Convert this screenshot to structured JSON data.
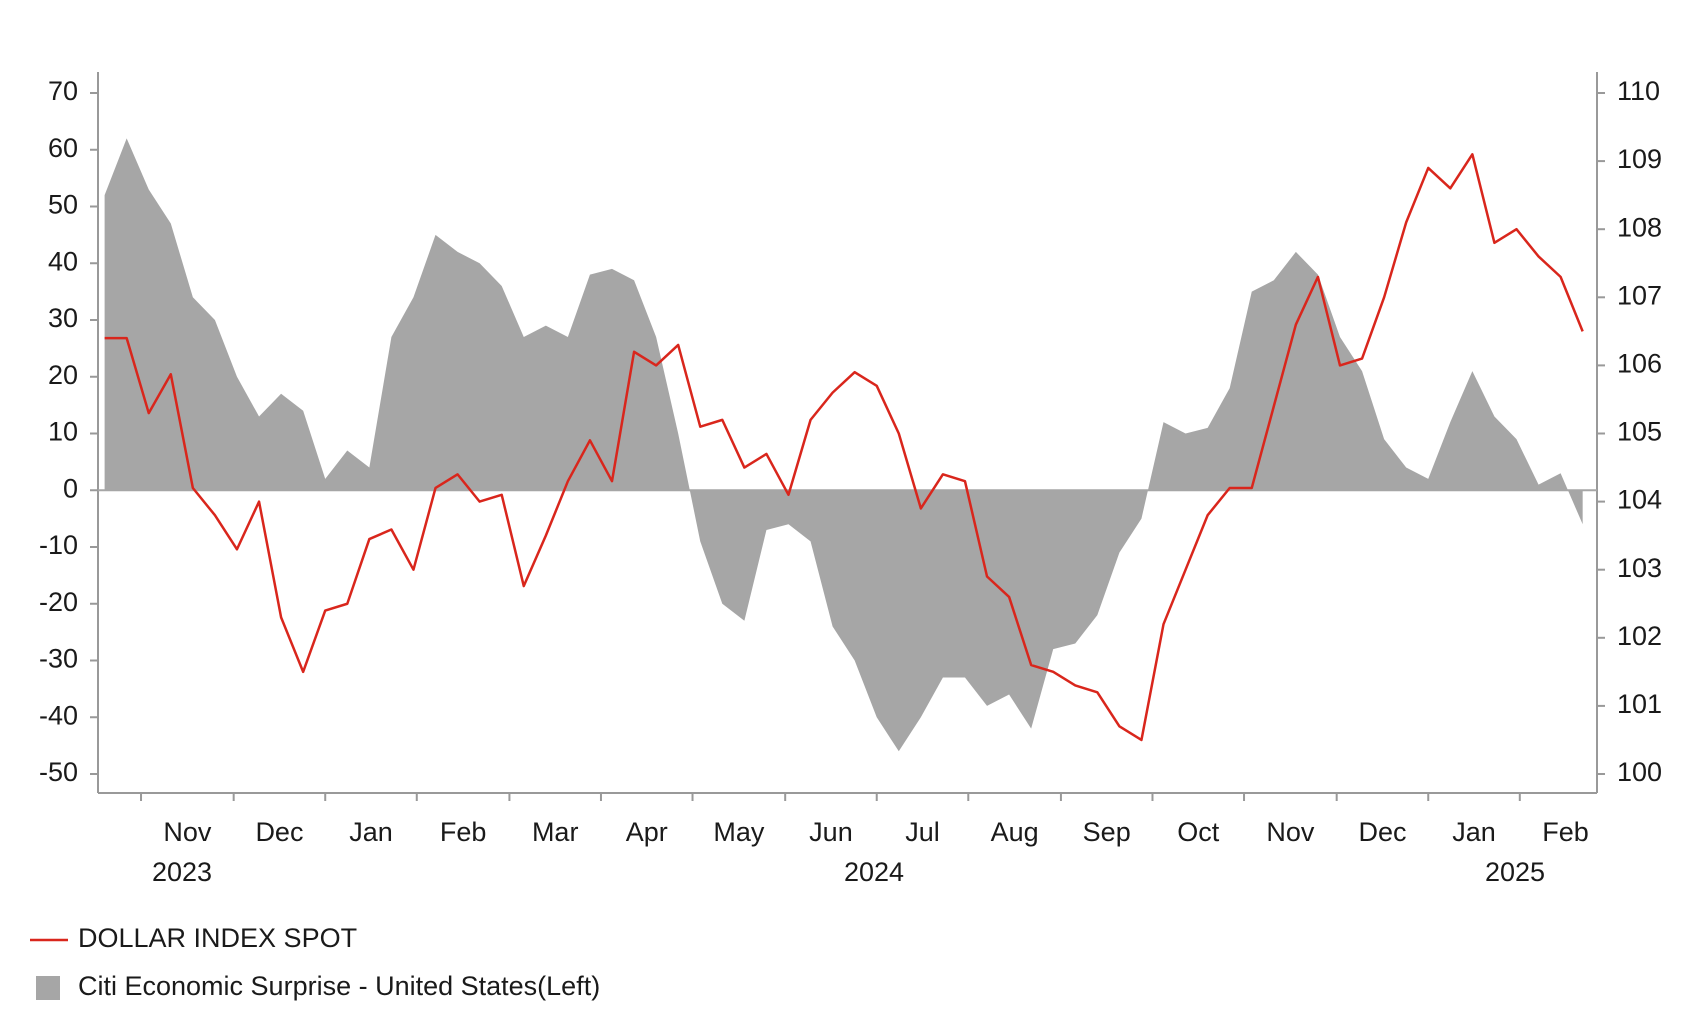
{
  "chart_data": {
    "type": "line",
    "x": [
      2023.8,
      2023.82,
      2023.84,
      2023.86,
      2023.88,
      2023.9,
      2023.92,
      2023.94,
      2023.96,
      2023.98,
      2024.0,
      2024.02,
      2024.04,
      2024.06,
      2024.08,
      2024.1,
      2024.12,
      2024.14,
      2024.16,
      2024.18,
      2024.2,
      2024.22,
      2024.24,
      2024.26,
      2024.28,
      2024.3,
      2024.32,
      2024.34,
      2024.36,
      2024.38,
      2024.4,
      2024.42,
      2024.44,
      2024.46,
      2024.48,
      2024.5,
      2024.52,
      2024.54,
      2024.56,
      2024.58,
      2024.6,
      2024.62,
      2024.64,
      2024.66,
      2024.68,
      2024.7,
      2024.72,
      2024.74,
      2024.76,
      2024.78,
      2024.8,
      2024.82,
      2024.84,
      2024.86,
      2024.88,
      2024.9,
      2024.92,
      2024.94,
      2024.96,
      2024.98,
      2025.0,
      2025.02,
      2025.04,
      2025.06,
      2025.08,
      2025.1,
      2025.12,
      2025.14
    ],
    "series": [
      {
        "name": "Citi Economic Surprise - United States(Left)",
        "type": "area",
        "color": "#a6a6a6",
        "axis": "y",
        "values": [
          52,
          62,
          53,
          47,
          34,
          30,
          20,
          13,
          17,
          14,
          2,
          7,
          4,
          27,
          34,
          45,
          42,
          40,
          36,
          27,
          29,
          27,
          38,
          39,
          37,
          27,
          10,
          -9,
          -20,
          -23,
          -7,
          -6,
          -9,
          -24,
          -30,
          -40,
          -46,
          -40,
          -33,
          -33,
          -38,
          -36,
          -42,
          -28,
          -27,
          -22,
          -11,
          -5,
          12,
          10,
          11,
          18,
          35,
          37,
          42,
          38,
          27,
          21,
          9,
          4,
          2,
          12,
          21,
          13,
          9,
          1,
          3,
          -6
        ]
      },
      {
        "name": "DOLLAR INDEX SPOT",
        "type": "line",
        "color": "#d9261c",
        "axis": "y2",
        "values": [
          106.4,
          106.4,
          105.3,
          105.87,
          104.2,
          103.8,
          103.3,
          104.0,
          102.3,
          101.5,
          102.4,
          102.5,
          103.45,
          103.59,
          103.0,
          104.2,
          104.4,
          104.0,
          104.1,
          102.76,
          103.5,
          104.3,
          104.9,
          104.3,
          106.2,
          106.0,
          106.3,
          105.1,
          105.2,
          104.5,
          104.7,
          104.1,
          105.2,
          105.6,
          105.9,
          105.7,
          105.0,
          103.9,
          104.4,
          104.3,
          102.9,
          102.6,
          101.6,
          101.5,
          101.3,
          101.2,
          100.7,
          100.5,
          102.2,
          103.0,
          103.8,
          104.2,
          104.2,
          105.4,
          106.6,
          107.3,
          106.0,
          106.1,
          107.0,
          108.1,
          108.9,
          108.6,
          109.1,
          107.8,
          108.0,
          107.6,
          107.3,
          106.5
        ]
      }
    ],
    "xlim": [
      2023.794,
      2025.153
    ],
    "xticks": [
      {
        "value": 2023.833,
        "label": "Nov"
      },
      {
        "value": 2023.917,
        "label": "Dec"
      },
      {
        "value": 2024.0,
        "label": "Jan"
      },
      {
        "value": 2024.083,
        "label": "Feb"
      },
      {
        "value": 2024.167,
        "label": "Mar"
      },
      {
        "value": 2024.25,
        "label": "Apr"
      },
      {
        "value": 2024.333,
        "label": "May"
      },
      {
        "value": 2024.417,
        "label": "Jun"
      },
      {
        "value": 2024.5,
        "label": "Jul"
      },
      {
        "value": 2024.583,
        "label": "Aug"
      },
      {
        "value": 2024.667,
        "label": "Sep"
      },
      {
        "value": 2024.75,
        "label": "Oct"
      },
      {
        "value": 2024.833,
        "label": "Nov"
      },
      {
        "value": 2024.917,
        "label": "Dec"
      },
      {
        "value": 2025.0,
        "label": "Jan"
      },
      {
        "value": 2025.083,
        "label": "Feb"
      }
    ],
    "year_labels": [
      "2023",
      "2024",
      "2025"
    ],
    "ylim": [
      -50,
      70
    ],
    "yticks": [
      -50,
      -40,
      -30,
      -20,
      -10,
      0,
      10,
      20,
      30,
      40,
      50,
      60,
      70
    ],
    "y2lim": [
      100,
      110
    ],
    "y2ticks": [
      100,
      101,
      102,
      103,
      104,
      105,
      106,
      107,
      108,
      109,
      110
    ],
    "legend": "bottom-left"
  }
}
